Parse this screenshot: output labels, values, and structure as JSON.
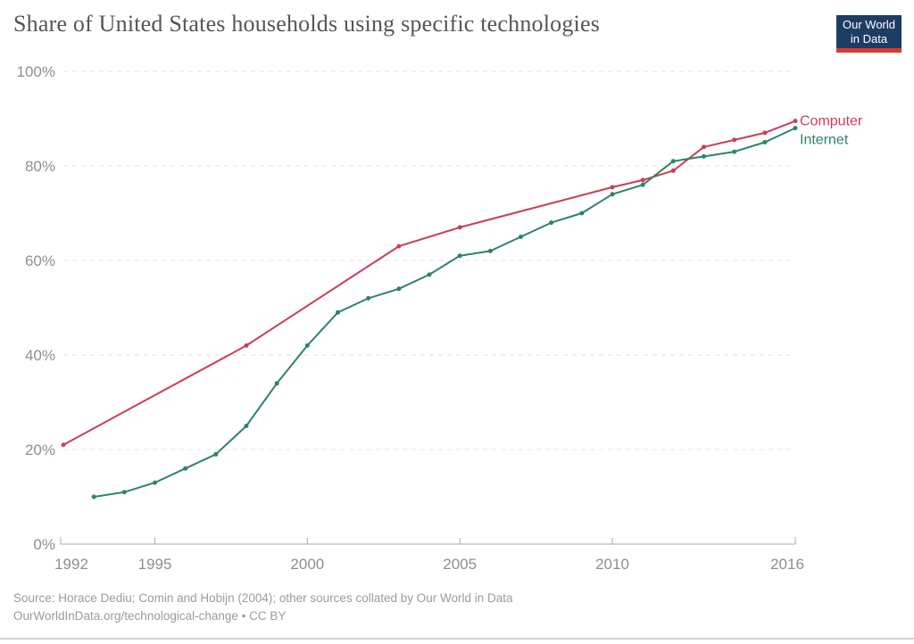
{
  "header": {
    "title": "Share of United States households using specific technologies",
    "logo": {
      "line1": "Our World",
      "line2": "in Data",
      "bg_color": "#1d3d63",
      "bar_color": "#d93a30"
    }
  },
  "footer": {
    "source_line1": "Source: Horace Dediu; Comin and Hobijn (2004); other sources collated by Our World in Data",
    "source_line2": "OurWorldInData.org/technological-change • CC BY"
  },
  "chart_data": {
    "type": "line",
    "title": "Share of United States households using specific technologies",
    "xlabel": "",
    "ylabel": "",
    "xlim": [
      1992,
      2016
    ],
    "ylim": [
      0,
      100
    ],
    "grid": "horizontal-dashed",
    "legend_position": "right-end-labels",
    "x_ticks": [
      {
        "year": 1992,
        "label": "1992"
      },
      {
        "year": 1995,
        "label": "1995"
      },
      {
        "year": 2000,
        "label": "2000"
      },
      {
        "year": 2005,
        "label": "2005"
      },
      {
        "year": 2010,
        "label": "2010"
      },
      {
        "year": 2016,
        "label": "2016"
      }
    ],
    "y_ticks": [
      {
        "value": 0,
        "label": "0%"
      },
      {
        "value": 20,
        "label": "20%"
      },
      {
        "value": 40,
        "label": "40%"
      },
      {
        "value": 60,
        "label": "60%"
      },
      {
        "value": 80,
        "label": "80%"
      },
      {
        "value": 100,
        "label": "100%"
      }
    ],
    "series": [
      {
        "name": "Computer",
        "color": "#cb3e57",
        "points": [
          [
            1992,
            21
          ],
          [
            1998,
            42
          ],
          [
            2003,
            63
          ],
          [
            2005,
            67
          ],
          [
            2010,
            75.5
          ],
          [
            2011,
            77
          ],
          [
            2012,
            79
          ],
          [
            2013,
            84
          ],
          [
            2014,
            85.5
          ],
          [
            2015,
            87
          ],
          [
            2016,
            89.5
          ]
        ]
      },
      {
        "name": "Internet",
        "color": "#2c8465",
        "points": [
          [
            1993,
            10
          ],
          [
            1994,
            11
          ],
          [
            1995,
            13
          ],
          [
            1996,
            16
          ],
          [
            1997,
            19
          ],
          [
            1998,
            25
          ],
          [
            1999,
            34
          ],
          [
            2000,
            42
          ],
          [
            2001,
            49
          ],
          [
            2002,
            52
          ],
          [
            2003,
            54
          ],
          [
            2004,
            57
          ],
          [
            2005,
            61
          ],
          [
            2006,
            62
          ],
          [
            2007,
            65
          ],
          [
            2008,
            68
          ],
          [
            2009,
            70
          ],
          [
            2010,
            74
          ],
          [
            2011,
            76
          ],
          [
            2012,
            81
          ],
          [
            2013,
            82
          ],
          [
            2014,
            83
          ],
          [
            2015,
            85
          ],
          [
            2016,
            88
          ]
        ]
      }
    ]
  }
}
